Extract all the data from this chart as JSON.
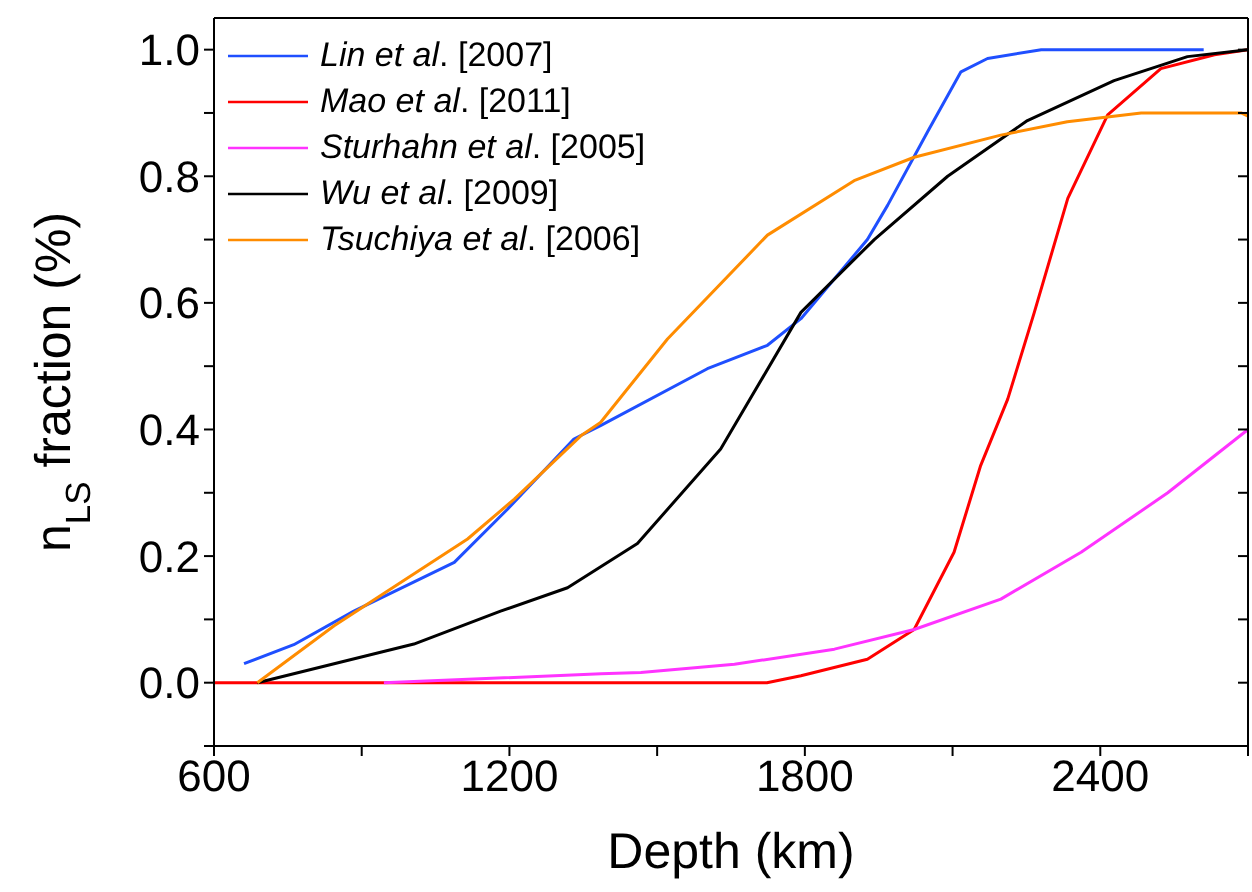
{
  "chart_data": {
    "type": "line",
    "xlabel": "Depth (km)",
    "ylabel": "n$_{LS}$ fraction (%)",
    "xlim": [
      600,
      2700
    ],
    "ylim": [
      -0.1,
      1.05
    ],
    "xticks": [
      600,
      {
        "value": 900,
        "label": null
      },
      1200,
      {
        "value": 1500,
        "label": null
      },
      1800,
      {
        "value": 2100,
        "label": null
      },
      2400,
      {
        "value": 2700,
        "label": null
      }
    ],
    "yticks": [
      {
        "value": -0.1,
        "label": null
      },
      {
        "value": 0,
        "label": "0.0"
      },
      {
        "value": 0.1,
        "label": null
      },
      {
        "value": 0.2,
        "label": "0.2"
      },
      {
        "value": 0.3,
        "label": null
      },
      {
        "value": 0.4,
        "label": "0.4"
      },
      {
        "value": 0.5,
        "label": null
      },
      {
        "value": 0.6,
        "label": "0.6"
      },
      {
        "value": 0.7,
        "label": null
      },
      {
        "value": 0.8,
        "label": "0.8"
      },
      {
        "value": 0.9,
        "label": null
      },
      {
        "value": 1.0,
        "label": "1.0"
      }
    ],
    "grid": false,
    "legend": "top left",
    "marker": "none",
    "line_style": "solid",
    "series": [
      {
        "name": "Lin et al. [2007]",
        "color": "#1f4fff",
        "x": [
          661,
          762,
          884,
          1088,
          1196,
          1331,
          1385,
          1602,
          1724,
          1792,
          1927,
          1968,
          2049,
          2117,
          2171,
          2280,
          2610
        ],
        "values": [
          0.03,
          0.06,
          0.113,
          0.19,
          0.274,
          0.385,
          0.406,
          0.496,
          0.533,
          0.575,
          0.7,
          0.754,
          0.87,
          0.965,
          0.986,
          1.0,
          1.0
        ]
      },
      {
        "name": "Mao et al. [2011]",
        "color": "#ff0000",
        "x": [
          600,
          1723,
          1792,
          1927,
          2022,
          2103,
          2157,
          2212,
          2266,
          2334,
          2415,
          2523,
          2632,
          2700
        ],
        "values": [
          0,
          0,
          0.011,
          0.037,
          0.084,
          0.206,
          0.343,
          0.448,
          0.585,
          0.765,
          0.897,
          0.97,
          0.992,
          1.0
        ]
      },
      {
        "name": "Sturhahn et al. [2005]",
        "color": "#ff33ff",
        "x": [
          945,
          1386,
          1467,
          1657,
          1860,
          2022,
          2198,
          2361,
          2537,
          2700
        ],
        "values": [
          0,
          0.014,
          0.016,
          0.029,
          0.053,
          0.084,
          0.132,
          0.206,
          0.3,
          0.4
        ]
      },
      {
        "name": "Wu et al. [2009]",
        "color": "#000000",
        "x": [
          688,
          1006,
          1182,
          1318,
          1460,
          1629,
          1792,
          1941,
          2090,
          2252,
          2428,
          2577,
          2700
        ],
        "values": [
          0,
          0.061,
          0.113,
          0.15,
          0.22,
          0.369,
          0.585,
          0.7,
          0.8,
          0.888,
          0.951,
          0.989,
          1.0
        ]
      },
      {
        "name": "Tsuchiya et al. [2006]",
        "color": "#ff8c00",
        "x": [
          688,
          844,
          1115,
          1210,
          1345,
          1385,
          1521,
          1724,
          1900,
          2022,
          2198,
          2333,
          2483,
          2686,
          2700
        ],
        "values": [
          0,
          0.09,
          0.227,
          0.29,
          0.39,
          0.411,
          0.543,
          0.707,
          0.793,
          0.83,
          0.865,
          0.886,
          0.9,
          0.9,
          0.895
        ]
      }
    ]
  }
}
